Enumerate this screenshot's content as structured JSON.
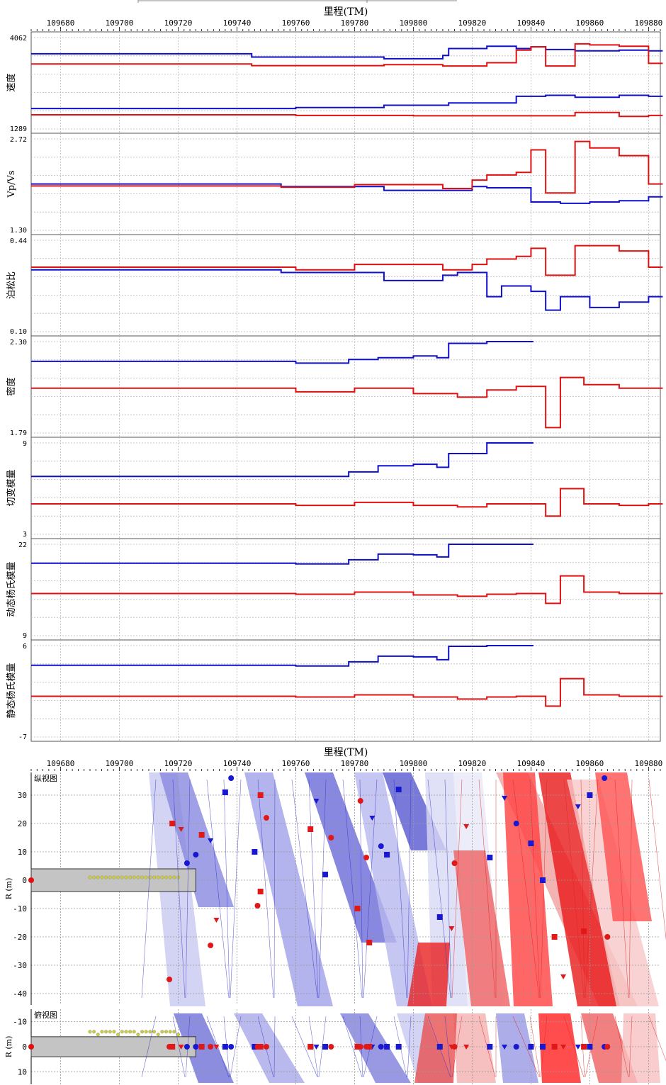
{
  "chart_data": [
    {
      "type": "line",
      "panel": "upper",
      "xlabel": "里程(TM)",
      "xlim": [
        109670,
        109884
      ],
      "x_ticks": [
        109680,
        109700,
        109720,
        109740,
        109760,
        109780,
        109800,
        109820,
        109840,
        109860,
        109880
      ],
      "grid": true,
      "colors": {
        "blue": "#1010c8",
        "red": "#e01010"
      },
      "subplots": [
        {
          "ylabel": "速度",
          "ymax_label": "4062",
          "ymin_label": "1289",
          "ylim": [
            1289,
            4062
          ],
          "series": [
            {
              "color": "blue",
              "x": [
                109670,
                109722,
                109745,
                109790,
                109810,
                109812,
                109825,
                109835,
                109840,
                109845,
                109855,
                109870,
                109880
              ],
              "y": [
                3570,
                3570,
                3470,
                3420,
                3520,
                3730,
                3800,
                3730,
                3780,
                3700,
                3660,
                3680,
                3660
              ]
            },
            {
              "color": "red",
              "x": [
                109670,
                109722,
                109745,
                109790,
                109810,
                109825,
                109835,
                109840,
                109845,
                109855,
                109860,
                109870,
                109880
              ],
              "y": [
                3260,
                3260,
                3210,
                3240,
                3200,
                3300,
                3680,
                3780,
                3200,
                3870,
                3840,
                3800,
                3280
              ]
            },
            {
              "color": "blue",
              "x": [
                109670,
                109722,
                109760,
                109790,
                109812,
                109835,
                109845,
                109855,
                109870,
                109880
              ],
              "y": [
                1910,
                1910,
                1940,
                2010,
                2080,
                2280,
                2310,
                2250,
                2310,
                2280
              ]
            },
            {
              "color": "red",
              "x": [
                109670,
                109722,
                109760,
                109800,
                109820,
                109845,
                109855,
                109870,
                109880
              ],
              "y": [
                1720,
                1720,
                1700,
                1690,
                1690,
                1690,
                1790,
                1670,
                1700
              ]
            }
          ]
        },
        {
          "ylabel": "Vp/Vs",
          "ymax_label": "2.72",
          "ymin_label": "1.30",
          "ylim": [
            1.3,
            2.72
          ],
          "series": [
            {
              "color": "blue",
              "x": [
                109670,
                109722,
                109755,
                109790,
                109810,
                109820,
                109825,
                109840,
                109850,
                109860,
                109870,
                109880
              ],
              "y": [
                2.02,
                2.02,
                1.98,
                1.92,
                1.92,
                1.98,
                1.96,
                1.74,
                1.72,
                1.74,
                1.76,
                1.82
              ]
            },
            {
              "color": "red",
              "x": [
                109670,
                109722,
                109755,
                109780,
                109810,
                109820,
                109825,
                109835,
                109840,
                109845,
                109855,
                109860,
                109870,
                109880
              ],
              "y": [
                1.99,
                1.99,
                1.97,
                2.01,
                1.95,
                2.08,
                2.16,
                2.2,
                2.55,
                1.88,
                2.68,
                2.58,
                2.46,
                2.02
              ]
            }
          ]
        },
        {
          "ylabel": "泊松比",
          "ymax_label": "0.44",
          "ymin_label": "0.10",
          "ylim": [
            0.1,
            0.44
          ],
          "series": [
            {
              "color": "blue",
              "x": [
                109670,
                109722,
                109755,
                109780,
                109790,
                109805,
                109810,
                109815,
                109825,
                109830,
                109840,
                109845,
                109850,
                109860,
                109870,
                109880
              ],
              "y": [
                0.33,
                0.33,
                0.32,
                0.32,
                0.29,
                0.29,
                0.31,
                0.32,
                0.23,
                0.27,
                0.25,
                0.18,
                0.23,
                0.19,
                0.21,
                0.23
              ]
            },
            {
              "color": "red",
              "x": [
                109670,
                109722,
                109760,
                109780,
                109810,
                109820,
                109825,
                109835,
                109840,
                109845,
                109855,
                109860,
                109870,
                109880
              ],
              "y": [
                0.34,
                0.34,
                0.33,
                0.35,
                0.33,
                0.35,
                0.37,
                0.38,
                0.41,
                0.31,
                0.42,
                0.42,
                0.4,
                0.34
              ]
            }
          ]
        },
        {
          "ylabel": "密度",
          "ymax_label": "2.30",
          "ymin_label": "1.79",
          "ylim": [
            1.79,
            2.3
          ],
          "series": [
            {
              "color": "blue",
              "x": [
                109670,
                109722,
                109760,
                109778,
                109788,
                109800,
                109808,
                109812,
                109825,
                109836
              ],
              "y": [
                2.19,
                2.19,
                2.18,
                2.2,
                2.21,
                2.22,
                2.21,
                2.29,
                2.3,
                2.3
              ]
            },
            {
              "color": "red",
              "x": [
                109670,
                109722,
                109760,
                109780,
                109800,
                109815,
                109825,
                109835,
                109845,
                109850,
                109858,
                109870,
                109880
              ],
              "y": [
                2.04,
                2.04,
                2.02,
                2.04,
                2.01,
                1.99,
                2.03,
                2.05,
                1.82,
                2.1,
                2.06,
                2.04,
                2.04
              ]
            }
          ]
        },
        {
          "ylabel": "切变模量",
          "ymax_label": "9",
          "ymin_label": "3",
          "ylim": [
            3,
            9
          ],
          "series": [
            {
              "color": "blue",
              "x": [
                109670,
                109722,
                109760,
                109778,
                109788,
                109800,
                109808,
                109812,
                109825,
                109836
              ],
              "y": [
                6.8,
                6.8,
                6.8,
                7.1,
                7.5,
                7.6,
                7.4,
                8.3,
                9.0,
                9.0
              ]
            },
            {
              "color": "red",
              "x": [
                109670,
                109722,
                109760,
                109780,
                109800,
                109815,
                109825,
                109835,
                109845,
                109850,
                109858,
                109870,
                109880
              ],
              "y": [
                5.0,
                5.0,
                4.9,
                5.1,
                4.9,
                4.8,
                5.0,
                5.0,
                4.2,
                6.0,
                5.0,
                4.9,
                5.0
              ]
            }
          ]
        },
        {
          "ylabel": "动态杨氏模量",
          "ymax_label": "22",
          "ymin_label": "9",
          "ylim": [
            9,
            22
          ],
          "series": [
            {
              "color": "blue",
              "x": [
                109670,
                109722,
                109760,
                109778,
                109788,
                109800,
                109808,
                109812,
                109825,
                109836
              ],
              "y": [
                19.3,
                19.3,
                19.2,
                19.8,
                20.6,
                20.5,
                20.2,
                22.0,
                22.0,
                22.0
              ]
            },
            {
              "color": "red",
              "x": [
                109670,
                109722,
                109760,
                109780,
                109800,
                109815,
                109825,
                109835,
                109845,
                109850,
                109858,
                109870,
                109880
              ],
              "y": [
                15.0,
                15.0,
                14.9,
                15.2,
                14.8,
                14.6,
                14.9,
                15.0,
                13.6,
                17.5,
                15.2,
                15.0,
                15.0
              ]
            }
          ]
        },
        {
          "ylabel": "静态杨氏模量",
          "ymax_label": "6",
          "ymin_label": "-7",
          "ylim": [
            -7,
            6
          ],
          "series": [
            {
              "color": "blue",
              "x": [
                109670,
                109722,
                109760,
                109778,
                109788,
                109800,
                109808,
                109812,
                109825,
                109836
              ],
              "y": [
                3.2,
                3.2,
                3.1,
                3.7,
                4.5,
                4.4,
                4.0,
                5.9,
                6.0,
                6.0
              ]
            },
            {
              "color": "red",
              "x": [
                109670,
                109722,
                109760,
                109780,
                109800,
                109815,
                109825,
                109835,
                109845,
                109850,
                109858,
                109870,
                109880
              ],
              "y": [
                -1.2,
                -1.2,
                -1.3,
                -1.0,
                -1.3,
                -1.6,
                -1.3,
                -1.2,
                -2.6,
                1.3,
                -1.0,
                -1.2,
                -1.2
              ]
            }
          ]
        }
      ]
    },
    {
      "type": "scatter",
      "panel": "lower",
      "xlabel": "里程(TM)",
      "xlim": [
        109670,
        109884
      ],
      "x_ticks": [
        109680,
        109700,
        109720,
        109740,
        109760,
        109780,
        109800,
        109820,
        109840,
        109860,
        109880
      ],
      "views": [
        {
          "title": "纵视图",
          "ylabel": "R (m)",
          "ylim": [
            -44,
            38
          ],
          "y_ticks": [
            30,
            20,
            10,
            0,
            -10,
            -20,
            -30,
            -40
          ],
          "y_tick_labels": [
            "30",
            "20",
            "10",
            "0",
            "-10",
            "-20",
            "-30",
            "-40"
          ]
        },
        {
          "title": "俯视图",
          "ylabel": "R (m)",
          "ylim": [
            -15,
            15
          ],
          "y_ticks": [
            -10,
            0,
            10
          ],
          "y_tick_labels": [
            "-10",
            "0",
            "10"
          ]
        }
      ],
      "tunnel": {
        "x_start": 109670,
        "x_end": 109726,
        "y_top": 4,
        "y_bottom": -4
      },
      "sensors": {
        "color": "#cccc44",
        "x_start": 109690,
        "x_end": 109720,
        "y": 1
      },
      "sensors_top": {
        "color": "#cccc44",
        "x_start": 109690,
        "x_end": 109720,
        "y": -6
      },
      "markers": [
        {
          "x": 109738,
          "y": 36,
          "c": "blue",
          "s": "circle"
        },
        {
          "x": 109736,
          "y": 31,
          "c": "blue",
          "s": "square"
        },
        {
          "x": 109728,
          "y": 16,
          "c": "red",
          "s": "square"
        },
        {
          "x": 109731,
          "y": 14,
          "c": "blue",
          "s": "tri"
        },
        {
          "x": 109726,
          "y": 9,
          "c": "blue",
          "s": "circle"
        },
        {
          "x": 109721,
          "y": 18,
          "c": "red",
          "s": "tri"
        },
        {
          "x": 109718,
          "y": 20,
          "c": "red",
          "s": "square"
        },
        {
          "x": 109723,
          "y": 6,
          "c": "blue",
          "s": "circle"
        },
        {
          "x": 109748,
          "y": 30,
          "c": "red",
          "s": "square"
        },
        {
          "x": 109750,
          "y": 22,
          "c": "red",
          "s": "circle"
        },
        {
          "x": 109746,
          "y": 10,
          "c": "blue",
          "s": "square"
        },
        {
          "x": 109748,
          "y": -4,
          "c": "red",
          "s": "square"
        },
        {
          "x": 109747,
          "y": -9,
          "c": "red",
          "s": "circle"
        },
        {
          "x": 109733,
          "y": -14,
          "c": "red",
          "s": "tri"
        },
        {
          "x": 109731,
          "y": -23,
          "c": "red",
          "s": "circle"
        },
        {
          "x": 109717,
          "y": -35,
          "c": "red",
          "s": "circle"
        },
        {
          "x": 109767,
          "y": 28,
          "c": "blue",
          "s": "tri"
        },
        {
          "x": 109765,
          "y": 18,
          "c": "red",
          "s": "square"
        },
        {
          "x": 109772,
          "y": 15,
          "c": "red",
          "s": "circle"
        },
        {
          "x": 109770,
          "y": 2,
          "c": "blue",
          "s": "square"
        },
        {
          "x": 109782,
          "y": 28,
          "c": "red",
          "s": "circle"
        },
        {
          "x": 109786,
          "y": 22,
          "c": "blue",
          "s": "tri"
        },
        {
          "x": 109784,
          "y": 8,
          "c": "red",
          "s": "circle"
        },
        {
          "x": 109781,
          "y": -10,
          "c": "red",
          "s": "square"
        },
        {
          "x": 109785,
          "y": -22,
          "c": "red",
          "s": "square"
        },
        {
          "x": 109795,
          "y": 32,
          "c": "blue",
          "s": "square"
        },
        {
          "x": 109789,
          "y": 12,
          "c": "blue",
          "s": "circle"
        },
        {
          "x": 109791,
          "y": 9,
          "c": "blue",
          "s": "square"
        },
        {
          "x": 109809,
          "y": -13,
          "c": "blue",
          "s": "square"
        },
        {
          "x": 109813,
          "y": -17,
          "c": "red",
          "s": "tri"
        },
        {
          "x": 109818,
          "y": 19,
          "c": "red",
          "s": "tri"
        },
        {
          "x": 109814,
          "y": 6,
          "c": "red",
          "s": "circle"
        },
        {
          "x": 109826,
          "y": 8,
          "c": "blue",
          "s": "square"
        },
        {
          "x": 109831,
          "y": 29,
          "c": "blue",
          "s": "tri"
        },
        {
          "x": 109835,
          "y": 20,
          "c": "blue",
          "s": "circle"
        },
        {
          "x": 109840,
          "y": 13,
          "c": "blue",
          "s": "square"
        },
        {
          "x": 109844,
          "y": 0,
          "c": "blue",
          "s": "square"
        },
        {
          "x": 109848,
          "y": -20,
          "c": "red",
          "s": "square"
        },
        {
          "x": 109851,
          "y": -34,
          "c": "red",
          "s": "tri"
        },
        {
          "x": 109856,
          "y": 26,
          "c": "blue",
          "s": "tri"
        },
        {
          "x": 109860,
          "y": 30,
          "c": "blue",
          "s": "square"
        },
        {
          "x": 109865,
          "y": 36,
          "c": "blue",
          "s": "circle"
        },
        {
          "x": 109858,
          "y": -18,
          "c": "red",
          "s": "square"
        },
        {
          "x": 109866,
          "y": -20,
          "c": "red",
          "s": "circle"
        }
      ]
    }
  ]
}
